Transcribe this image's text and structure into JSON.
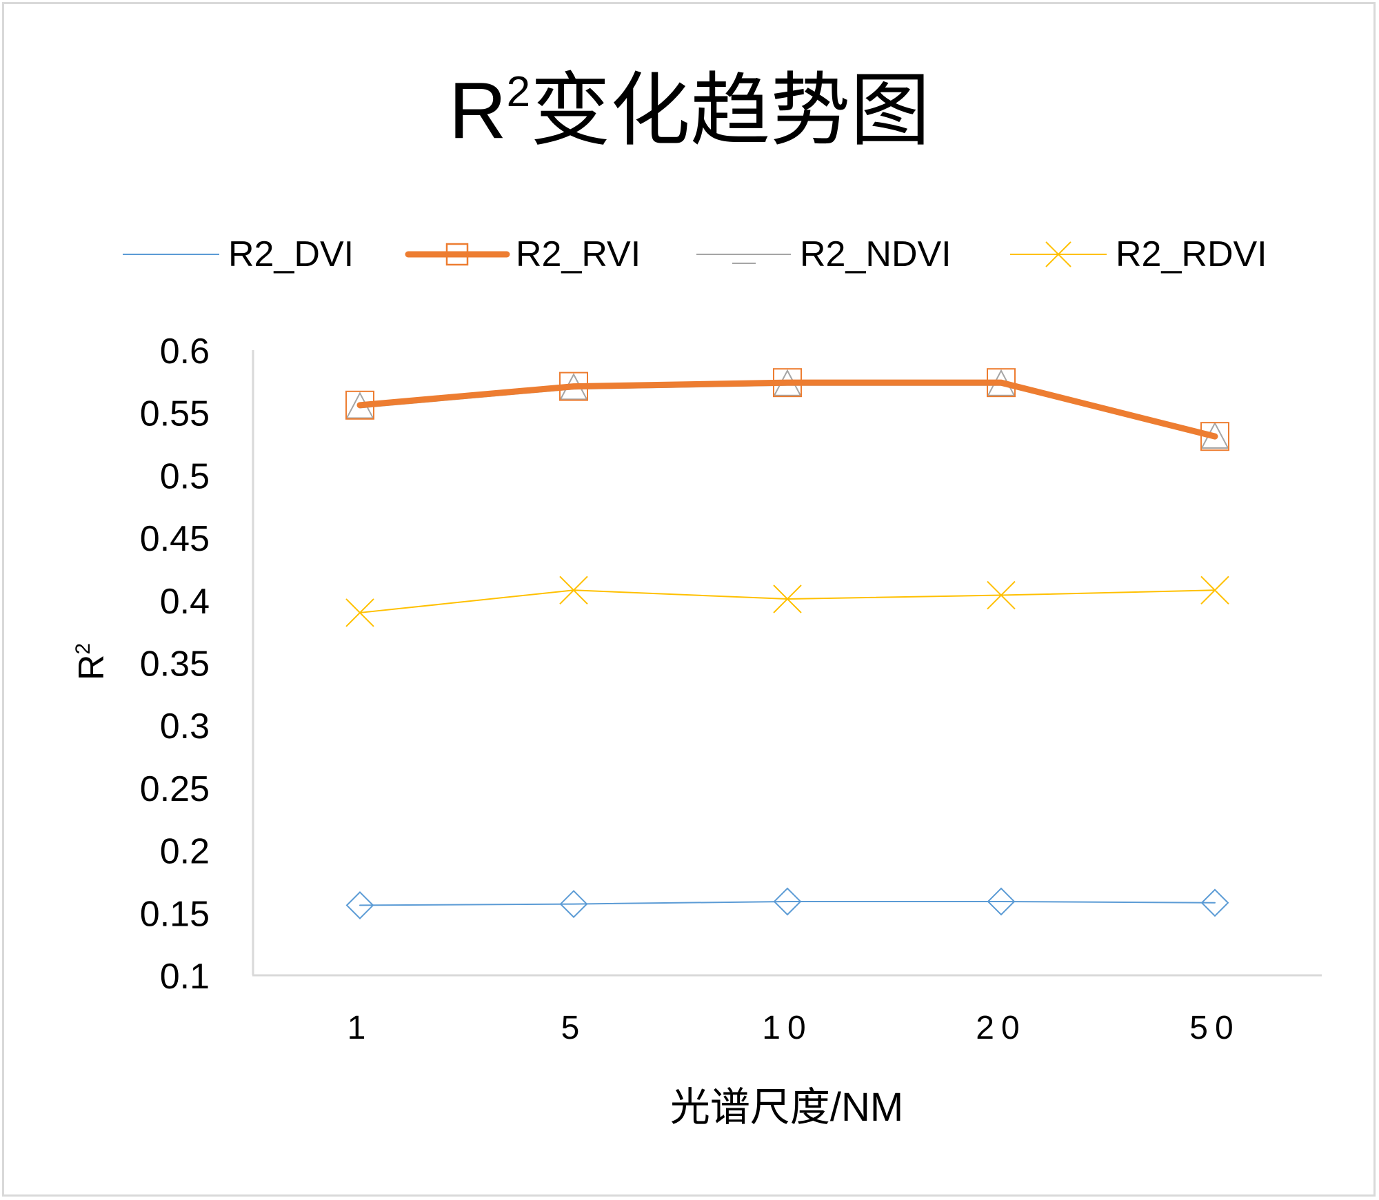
{
  "chart_data": {
    "type": "line",
    "title": "R2变化趋势图",
    "title_main": "R",
    "title_sup": "2",
    "title_rest": "变化趋势图",
    "xlabel": "光谱尺度/NM",
    "ylabel": "R2",
    "ylabel_main": "R",
    "ylabel_sup": "2",
    "categories": [
      "1",
      "5",
      "10",
      "20",
      "50"
    ],
    "ylim": [
      0.1,
      0.6
    ],
    "yticks": [
      "0.6",
      "0.55",
      "0.5",
      "0.45",
      "0.4",
      "0.35",
      "0.3",
      "0.25",
      "0.2",
      "0.15",
      "0.1"
    ],
    "ytick_values": [
      0.6,
      0.55,
      0.5,
      0.45,
      0.4,
      0.35,
      0.3,
      0.25,
      0.2,
      0.15,
      0.1
    ],
    "grid": false,
    "legend_position": "top",
    "series": [
      {
        "name": "R2_DVI",
        "values": [
          0.156,
          0.157,
          0.159,
          0.159,
          0.158
        ],
        "color": "#5b9bd5",
        "marker": "diamond",
        "weight": "thin"
      },
      {
        "name": "R2_RVI",
        "values": [
          0.556,
          0.571,
          0.574,
          0.574,
          0.531
        ],
        "color": "#ed7d31",
        "marker": "square",
        "weight": "thick"
      },
      {
        "name": "R2_NDVI",
        "values": [
          0.554,
          0.569,
          0.572,
          0.572,
          0.53
        ],
        "color": "#a5a5a5",
        "marker": "triangle",
        "weight": "thin"
      },
      {
        "name": "R2_RDVI",
        "values": [
          0.39,
          0.408,
          0.401,
          0.404,
          0.408
        ],
        "color": "#ffc000",
        "marker": "x",
        "weight": "thin"
      }
    ]
  }
}
